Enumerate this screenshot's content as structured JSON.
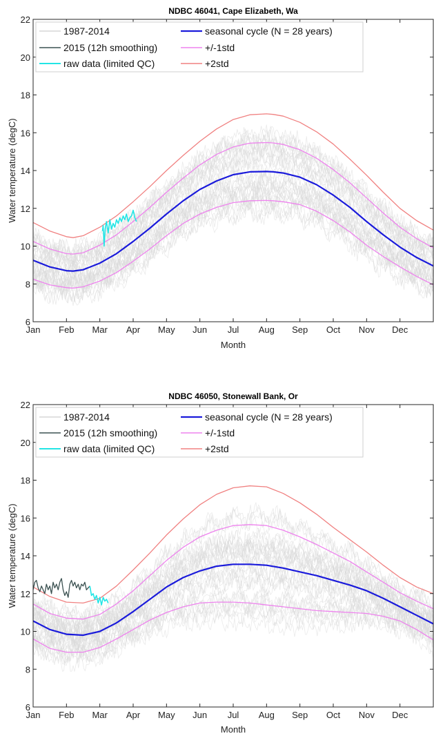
{
  "chart_data": [
    {
      "type": "line",
      "title": "NDBC 46041, Cape Elizabeth, Wa",
      "xlabel": "Month",
      "ylabel": "Water temperature (degC)",
      "ylim": [
        6,
        22
      ],
      "xlim": [
        0,
        12
      ],
      "x_ticks": [
        "Jan",
        "Feb",
        "Mar",
        "Apr",
        "May",
        "Jun",
        "Jul",
        "Aug",
        "Sep",
        "Oct",
        "Nov",
        "Dec"
      ],
      "y_ticks": [
        "6",
        "8",
        "10",
        "12",
        "14",
        "16",
        "18",
        "20",
        "22"
      ],
      "grid": false,
      "legend_position": "top",
      "legend": [
        "1987-2014",
        "2015 (12h smoothing)",
        "raw data (limited QC)",
        "seasonal cycle (N = 28 years)",
        "+/-1std",
        "+2std"
      ],
      "series": [
        {
          "name": "seasonal cycle (N = 28 years)",
          "color": "#1a1adb",
          "x": [
            0,
            0.5,
            1,
            1.2,
            1.5,
            2,
            2.5,
            3,
            3.5,
            4,
            4.5,
            5,
            5.5,
            6,
            6.5,
            7,
            7.2,
            7.5,
            8,
            8.5,
            9,
            9.5,
            10,
            10.5,
            11,
            11.5,
            12
          ],
          "y": [
            9.25,
            8.9,
            8.7,
            8.68,
            8.75,
            9.1,
            9.6,
            10.25,
            10.95,
            11.7,
            12.4,
            13.0,
            13.45,
            13.78,
            13.93,
            13.95,
            13.93,
            13.87,
            13.65,
            13.25,
            12.7,
            12.05,
            11.3,
            10.6,
            9.95,
            9.4,
            8.95
          ]
        },
        {
          "name": "+/-1std",
          "color": "#ee82ee",
          "x": [
            0,
            0.5,
            1,
            1.2,
            1.5,
            2,
            2.5,
            3,
            3.5,
            4,
            4.5,
            5,
            5.5,
            6,
            6.5,
            7,
            7.2,
            7.5,
            8,
            8.5,
            9,
            9.5,
            10,
            10.5,
            11,
            11.5,
            12
          ],
          "y": [
            10.25,
            9.85,
            9.6,
            9.58,
            9.65,
            10.05,
            10.6,
            11.3,
            12.05,
            12.85,
            13.6,
            14.3,
            14.85,
            15.25,
            15.45,
            15.48,
            15.46,
            15.38,
            15.1,
            14.65,
            14.05,
            13.35,
            12.55,
            11.75,
            11.0,
            10.4,
            9.9
          ]
        },
        {
          "name": "-1std",
          "color": "#ee82ee",
          "x": [
            0,
            0.5,
            1,
            1.2,
            1.5,
            2,
            2.5,
            3,
            3.5,
            4,
            4.5,
            5,
            5.5,
            6,
            6.5,
            7,
            7.2,
            7.5,
            8,
            8.5,
            9,
            9.5,
            10,
            10.5,
            11,
            11.5,
            12
          ],
          "y": [
            8.25,
            7.95,
            7.8,
            7.78,
            7.85,
            8.15,
            8.6,
            9.2,
            9.85,
            10.55,
            11.2,
            11.7,
            12.05,
            12.3,
            12.4,
            12.42,
            12.4,
            12.35,
            12.2,
            11.85,
            11.35,
            10.75,
            10.05,
            9.45,
            8.9,
            8.4,
            7.95
          ]
        },
        {
          "name": "+2std",
          "color": "#f08080",
          "x": [
            0,
            0.5,
            1,
            1.2,
            1.5,
            2,
            2.5,
            3,
            3.5,
            4,
            4.5,
            5,
            5.5,
            6,
            6.5,
            7,
            7.2,
            7.5,
            8,
            8.5,
            9,
            9.5,
            10,
            10.5,
            11,
            11.5,
            12
          ],
          "y": [
            11.25,
            10.8,
            10.5,
            10.45,
            10.55,
            11.0,
            11.6,
            12.35,
            13.15,
            14.0,
            14.8,
            15.55,
            16.2,
            16.7,
            16.95,
            17.0,
            16.97,
            16.88,
            16.55,
            16.05,
            15.4,
            14.6,
            13.75,
            12.85,
            12.0,
            11.35,
            10.85
          ]
        },
        {
          "name": "raw data (limited QC)",
          "color": "#22e5e5",
          "x": [
            2.08,
            2.1,
            2.13,
            2.16,
            2.2,
            2.25,
            2.3,
            2.35,
            2.4,
            2.45,
            2.5,
            2.55,
            2.6,
            2.65,
            2.7,
            2.75,
            2.8,
            2.85,
            2.9,
            2.95,
            3.0,
            3.05,
            3.1
          ],
          "y": [
            10.8,
            11.1,
            10.0,
            10.9,
            11.3,
            10.7,
            11.4,
            10.9,
            11.2,
            11.0,
            11.4,
            11.2,
            11.5,
            11.3,
            11.6,
            11.4,
            11.7,
            11.3,
            11.5,
            11.6,
            11.9,
            11.5,
            11.3
          ]
        }
      ]
    },
    {
      "type": "line",
      "title": "NDBC 46050, Stonewall Bank, Or",
      "xlabel": "Month",
      "ylabel": "Water temperature (degC)",
      "ylim": [
        6,
        22
      ],
      "xlim": [
        0,
        12
      ],
      "x_ticks": [
        "Jan",
        "Feb",
        "Mar",
        "Apr",
        "May",
        "Jun",
        "Jul",
        "Aug",
        "Sep",
        "Oct",
        "Nov",
        "Dec"
      ],
      "y_ticks": [
        "6",
        "8",
        "10",
        "12",
        "14",
        "16",
        "18",
        "20",
        "22"
      ],
      "grid": false,
      "legend_position": "top",
      "legend": [
        "1987-2014",
        "2015 (12h smoothing)",
        "raw data (limited QC)",
        "seasonal cycle (N = 28 years)",
        "+/-1std",
        "+2std"
      ],
      "series": [
        {
          "name": "seasonal cycle (N = 28 years)",
          "color": "#1a1adb",
          "x": [
            0,
            0.5,
            1,
            1.5,
            2,
            2.5,
            3,
            3.5,
            4,
            4.5,
            5,
            5.5,
            6,
            6.5,
            7,
            7.5,
            8,
            8.5,
            9,
            9.5,
            10,
            10.5,
            11,
            11.5,
            12
          ],
          "y": [
            10.55,
            10.1,
            9.85,
            9.8,
            10.0,
            10.45,
            11.05,
            11.7,
            12.35,
            12.85,
            13.2,
            13.45,
            13.55,
            13.55,
            13.5,
            13.35,
            13.15,
            12.95,
            12.7,
            12.45,
            12.15,
            11.75,
            11.3,
            10.85,
            10.4
          ]
        },
        {
          "name": "+/-1std",
          "color": "#ee82ee",
          "x": [
            0,
            0.5,
            1,
            1.5,
            2,
            2.5,
            3,
            3.5,
            4,
            4.5,
            5,
            5.5,
            6,
            6.5,
            7,
            7.5,
            8,
            8.5,
            9,
            9.5,
            10,
            10.5,
            11,
            11.5,
            12
          ],
          "y": [
            11.45,
            10.95,
            10.7,
            10.65,
            10.9,
            11.45,
            12.15,
            12.95,
            13.75,
            14.45,
            15.0,
            15.35,
            15.6,
            15.65,
            15.6,
            15.35,
            15.0,
            14.6,
            14.15,
            13.7,
            13.15,
            12.6,
            12.05,
            11.6,
            11.2
          ]
        },
        {
          "name": "-1std",
          "color": "#ee82ee",
          "x": [
            0,
            0.5,
            1,
            1.5,
            2,
            2.5,
            3,
            3.5,
            4,
            4.5,
            5,
            5.5,
            6,
            6.5,
            7,
            7.5,
            8,
            8.5,
            9,
            9.5,
            10,
            10.5,
            11,
            11.5,
            12
          ],
          "y": [
            9.6,
            9.1,
            8.9,
            8.9,
            9.15,
            9.6,
            10.1,
            10.6,
            11.0,
            11.3,
            11.5,
            11.55,
            11.55,
            11.5,
            11.4,
            11.3,
            11.2,
            11.1,
            11.05,
            11.0,
            10.95,
            10.8,
            10.55,
            10.1,
            9.55
          ]
        },
        {
          "name": "+2std",
          "color": "#f08080",
          "x": [
            0,
            0.5,
            1,
            1.5,
            2,
            2.5,
            3,
            3.5,
            4,
            4.5,
            5,
            5.5,
            6,
            6.5,
            7,
            7.5,
            8,
            8.5,
            9,
            9.5,
            10,
            10.5,
            11,
            11.5,
            12
          ],
          "y": [
            12.35,
            11.85,
            11.55,
            11.5,
            11.75,
            12.4,
            13.25,
            14.15,
            15.1,
            15.95,
            16.7,
            17.25,
            17.6,
            17.7,
            17.65,
            17.3,
            16.8,
            16.2,
            15.5,
            14.85,
            14.2,
            13.5,
            12.85,
            12.35,
            12.0
          ]
        },
        {
          "name": "2015 (12h smoothing)",
          "color": "#3a5050",
          "x": [
            0,
            0.05,
            0.1,
            0.15,
            0.2,
            0.25,
            0.3,
            0.35,
            0.4,
            0.45,
            0.5,
            0.55,
            0.6,
            0.65,
            0.7,
            0.75,
            0.8,
            0.85,
            0.9,
            0.95,
            1.0,
            1.05,
            1.1,
            1.15,
            1.2,
            1.25,
            1.3,
            1.35,
            1.4,
            1.45,
            1.5,
            1.55,
            1.6,
            1.65,
            1.7
          ],
          "y": [
            12.2,
            12.6,
            12.7,
            12.3,
            12.1,
            12.4,
            12.2,
            12.0,
            12.5,
            12.2,
            12.4,
            12.0,
            12.6,
            12.3,
            12.5,
            12.2,
            12.6,
            12.8,
            12.2,
            11.9,
            12.1,
            11.8,
            12.5,
            12.7,
            12.4,
            12.6,
            12.3,
            12.5,
            12.2,
            12.5,
            12.4,
            12.6,
            12.2,
            12.3,
            12.4
          ]
        },
        {
          "name": "raw data (limited QC)",
          "color": "#22e5e5",
          "x": [
            1.7,
            1.75,
            1.8,
            1.85,
            1.9,
            1.95,
            2.0,
            2.05,
            2.1,
            2.15,
            2.2,
            2.25
          ],
          "y": [
            12.4,
            11.9,
            12.0,
            11.7,
            11.9,
            11.5,
            11.8,
            11.4,
            11.8,
            11.6,
            11.7,
            11.5
          ]
        }
      ]
    }
  ]
}
